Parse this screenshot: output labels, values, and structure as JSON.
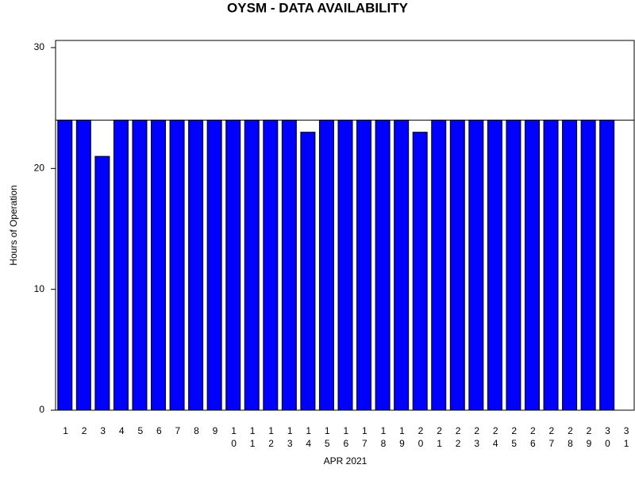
{
  "chart_data": {
    "type": "bar",
    "title": "OYSM - DATA AVAILABILITY",
    "x_label": "APR 2021",
    "y_label": "Hours of Operation",
    "categories": [
      "1",
      "2",
      "3",
      "4",
      "5",
      "6",
      "7",
      "8",
      "9",
      "10",
      "11",
      "12",
      "13",
      "14",
      "15",
      "16",
      "17",
      "18",
      "19",
      "20",
      "21",
      "22",
      "23",
      "24",
      "25",
      "26",
      "27",
      "28",
      "29",
      "30",
      "31"
    ],
    "values": [
      24,
      24,
      21,
      24,
      24,
      24,
      24,
      24,
      24,
      24,
      24,
      24,
      24,
      23,
      24,
      24,
      24,
      24,
      24,
      23,
      24,
      24,
      24,
      24,
      24,
      24,
      24,
      24,
      24,
      24,
      null
    ],
    "color": "#0000ff",
    "ylim": [
      0,
      30
    ],
    "yticks": [
      0,
      10,
      20,
      30
    ],
    "reference_line": 24
  }
}
